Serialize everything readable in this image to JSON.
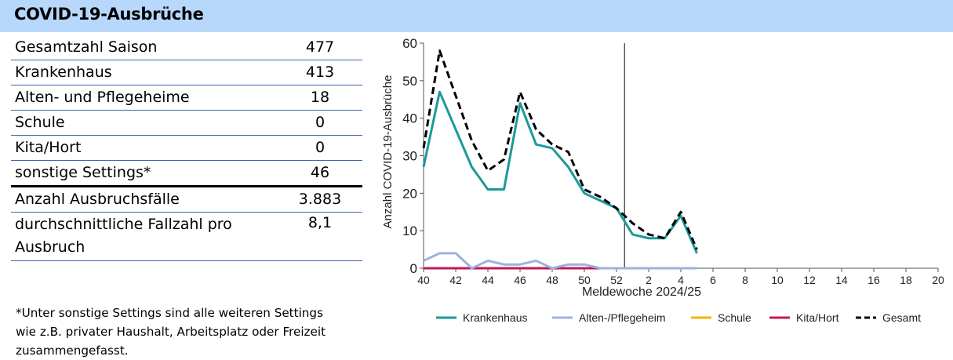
{
  "panel": {
    "title": "COVID-19-Ausbrüche",
    "rows": [
      {
        "label": "Gesamtzahl Saison",
        "value": "477"
      },
      {
        "label": "Krankenhaus",
        "value": "413"
      },
      {
        "label": "Alten- und Pflegeheime",
        "value": "18"
      },
      {
        "label": "Schule",
        "value": "0"
      },
      {
        "label": "Kita/Hort",
        "value": "0"
      },
      {
        "label": "sonstige Settings*",
        "value": "46"
      },
      {
        "label": "Anzahl Ausbruchsfälle",
        "value": "3.883"
      },
      {
        "label": "durchschnittliche Fallzahl pro Ausbruch",
        "value": "8,1"
      }
    ],
    "footnote": "*Unter sonstige Settings sind alle weiteren Settings wie z.B. privater Haushalt, Arbeitsplatz oder Freizeit zusammengefasst."
  },
  "chart_data": {
    "type": "line",
    "title": "",
    "xlabel": "Meldewoche 2024/25",
    "ylabel": "Anzahl COVID-19-Ausbrüche",
    "ylim": [
      0,
      60
    ],
    "y_ticks": [
      "0",
      "10",
      "20",
      "30",
      "40",
      "50",
      "60"
    ],
    "x_categories": [
      "40",
      "41",
      "42",
      "43",
      "44",
      "45",
      "46",
      "47",
      "48",
      "49",
      "50",
      "51",
      "52",
      "1",
      "2",
      "3",
      "4",
      "5",
      "6",
      "7",
      "8",
      "9",
      "10",
      "11",
      "12",
      "13",
      "14",
      "15",
      "16",
      "17",
      "18",
      "19",
      "20"
    ],
    "x_tick_labels": [
      "40",
      "42",
      "44",
      "46",
      "48",
      "50",
      "52",
      "2",
      "4",
      "6",
      "8",
      "10",
      "12",
      "14",
      "16",
      "18",
      "20"
    ],
    "vertical_marker": "1",
    "grid": false,
    "legend_position": "bottom",
    "series": [
      {
        "name": "Krankenhaus",
        "color": "#1a9a9a",
        "dash": false,
        "values": [
          27,
          47,
          37,
          27,
          21,
          21,
          44,
          33,
          32,
          27,
          20,
          18,
          16,
          9,
          8,
          8,
          14,
          4
        ]
      },
      {
        "name": "Alten-/Pflegeheim",
        "color": "#9fb2dd",
        "dash": false,
        "values": [
          2,
          4,
          4,
          0,
          2,
          1,
          1,
          2,
          0,
          1,
          1,
          0,
          0,
          0,
          0,
          0,
          0,
          0
        ]
      },
      {
        "name": "Schule",
        "color": "#f2b705",
        "dash": false,
        "values": [
          0,
          0,
          0,
          0,
          0,
          0,
          0,
          0,
          0,
          0,
          0,
          0,
          0,
          0,
          0,
          0,
          0,
          0
        ]
      },
      {
        "name": "Kita/Hort",
        "color": "#c2185b",
        "dash": false,
        "values": [
          0,
          0,
          0,
          0,
          0,
          0,
          0,
          0,
          0,
          0,
          0,
          0,
          0,
          0,
          0,
          0,
          0,
          0
        ]
      },
      {
        "name": "Gesamt",
        "color": "#000000",
        "dash": true,
        "values": [
          32,
          58,
          46,
          34,
          26,
          29,
          47,
          37,
          33,
          31,
          21,
          19,
          16,
          12,
          9,
          8,
          15,
          5
        ]
      }
    ]
  }
}
